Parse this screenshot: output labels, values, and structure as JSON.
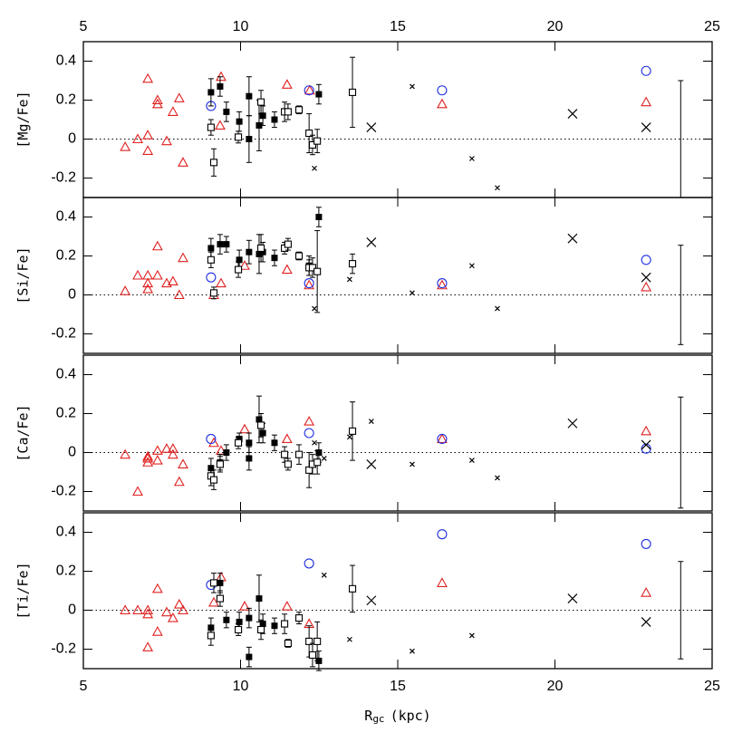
{
  "chart_data": [
    {
      "type": "scatter",
      "ylabel": "[Mg/Fe]",
      "xlim": [
        5,
        25
      ],
      "ylim": [
        -0.3,
        0.5
      ],
      "xticks": [
        5,
        10,
        15,
        20,
        25
      ],
      "yticks": [
        -0.2,
        0,
        0.2,
        0.4
      ],
      "hline": 0,
      "error_bar": {
        "x": 24,
        "y": 0,
        "err": 0.3
      },
      "series": [
        {
          "marker": "triangle",
          "color": "#e02020",
          "x": [
            6.33,
            6.73,
            7.05,
            7.05,
            7.05,
            7.36,
            7.36,
            7.65,
            7.85,
            8.05,
            8.17,
            9.38,
            9.35,
            11.48,
            12.2,
            16.41,
            22.9
          ],
          "y": [
            -0.04,
            0.0,
            0.31,
            0.02,
            -0.06,
            0.2,
            0.18,
            -0.01,
            0.14,
            0.21,
            -0.12,
            0.32,
            0.07,
            0.28,
            0.25,
            0.18,
            0.19
          ]
        },
        {
          "marker": "circle",
          "color": "#2030e0",
          "x": [
            9.06,
            12.18,
            16.41,
            22.9
          ],
          "y": [
            0.17,
            0.25,
            0.25,
            0.35
          ]
        },
        {
          "marker": "filled-square",
          "color": "#000000",
          "x": [
            9.06,
            9.35,
            9.55,
            9.96,
            10.27,
            10.27,
            10.59,
            10.71,
            11.08,
            12.49
          ],
          "y": [
            0.24,
            0.27,
            0.14,
            0.09,
            0.22,
            0.0,
            0.07,
            0.12,
            0.1,
            0.23
          ],
          "errors": [
            0.07,
            0.05,
            0.05,
            0.05,
            0.1,
            0.12,
            0.13,
            0.05,
            0.04,
            0.05
          ]
        },
        {
          "marker": "open-square",
          "color": "#000000",
          "x": [
            9.06,
            9.15,
            9.93,
            10.65,
            11.4,
            11.51,
            11.86,
            12.18,
            12.29,
            12.44,
            13.56
          ],
          "y": [
            0.06,
            -0.12,
            0.01,
            0.19,
            0.14,
            0.14,
            0.15,
            0.03,
            -0.03,
            -0.01,
            0.24
          ],
          "errors": [
            0.04,
            0.07,
            0.03,
            0.06,
            0.05,
            0.04,
            0.02,
            0.1,
            0.05,
            0.06,
            0.18
          ]
        },
        {
          "marker": "big-cross",
          "color": "#000000",
          "x": [
            14.16,
            20.56,
            22.9
          ],
          "y": [
            0.06,
            0.13,
            0.06
          ]
        },
        {
          "marker": "small-cross",
          "color": "#000000",
          "x": [
            12.35,
            15.46,
            17.36,
            18.17
          ],
          "y": [
            -0.15,
            0.27,
            -0.1,
            -0.25
          ]
        }
      ]
    },
    {
      "type": "scatter",
      "ylabel": "[Si/Fe]",
      "xlim": [
        5,
        25
      ],
      "ylim": [
        -0.3,
        0.5
      ],
      "xticks": [
        5,
        10,
        15,
        20,
        25
      ],
      "yticks": [
        -0.2,
        0,
        0.2,
        0.4
      ],
      "hline": 0,
      "error_bar": {
        "x": 24,
        "y": 0,
        "err": 0.255
      },
      "series": [
        {
          "marker": "triangle",
          "color": "#e02020",
          "x": [
            6.33,
            6.73,
            7.05,
            7.05,
            7.05,
            7.36,
            7.36,
            7.65,
            7.85,
            8.05,
            8.17,
            9.15,
            9.38,
            10.13,
            11.48,
            12.18,
            16.41,
            22.9
          ],
          "y": [
            0.02,
            0.1,
            0.1,
            0.06,
            0.03,
            0.25,
            0.1,
            0.06,
            0.07,
            0.0,
            0.19,
            0.0,
            0.06,
            0.15,
            0.13,
            0.05,
            0.05,
            0.04
          ]
        },
        {
          "marker": "circle",
          "color": "#2030e0",
          "x": [
            9.06,
            12.18,
            16.41,
            22.9
          ],
          "y": [
            0.09,
            0.06,
            0.06,
            0.18
          ]
        },
        {
          "marker": "filled-square",
          "color": "#000000",
          "x": [
            9.06,
            9.35,
            9.55,
            9.96,
            10.27,
            10.59,
            10.71,
            11.08,
            12.18,
            12.49
          ],
          "y": [
            0.24,
            0.26,
            0.26,
            0.18,
            0.22,
            0.21,
            0.22,
            0.19,
            0.15,
            0.4
          ],
          "errors": [
            0.05,
            0.05,
            0.04,
            0.05,
            0.06,
            0.1,
            0.05,
            0.04,
            0.05,
            0.05
          ]
        },
        {
          "marker": "open-square",
          "color": "#000000",
          "x": [
            9.06,
            9.15,
            9.93,
            10.65,
            11.4,
            11.51,
            11.86,
            12.18,
            12.29,
            12.44,
            13.56
          ],
          "y": [
            0.18,
            0.01,
            0.13,
            0.24,
            0.24,
            0.26,
            0.2,
            0.14,
            0.14,
            0.12,
            0.16
          ],
          "errors": [
            0.04,
            0.03,
            0.04,
            0.07,
            0.03,
            0.03,
            0.02,
            0.04,
            0.05,
            0.21,
            0.05
          ]
        },
        {
          "marker": "big-cross",
          "color": "#000000",
          "x": [
            14.16,
            20.56,
            22.9
          ],
          "y": [
            0.27,
            0.29,
            0.09
          ]
        },
        {
          "marker": "small-cross",
          "color": "#000000",
          "x": [
            12.35,
            13.47,
            15.46,
            17.36,
            18.17
          ],
          "y": [
            -0.07,
            0.08,
            0.01,
            0.15,
            -0.07
          ]
        }
      ]
    },
    {
      "type": "scatter",
      "ylabel": "[Ca/Fe]",
      "xlim": [
        5,
        25
      ],
      "ylim": [
        -0.3,
        0.5
      ],
      "xticks": [
        5,
        10,
        15,
        20,
        25
      ],
      "yticks": [
        -0.2,
        0,
        0.2,
        0.4
      ],
      "hline": 0,
      "error_bar": {
        "x": 24,
        "y": 0,
        "err": 0.285
      },
      "series": [
        {
          "marker": "triangle",
          "color": "#e02020",
          "x": [
            6.33,
            6.73,
            7.05,
            7.05,
            7.05,
            7.36,
            7.36,
            7.65,
            7.85,
            7.85,
            8.05,
            8.17,
            9.15,
            9.38,
            10.13,
            11.48,
            12.18,
            16.41,
            22.9
          ],
          "y": [
            -0.01,
            -0.2,
            -0.03,
            -0.05,
            -0.02,
            0.01,
            -0.04,
            0.02,
            -0.01,
            0.02,
            -0.15,
            -0.06,
            0.05,
            0.01,
            0.12,
            0.07,
            0.16,
            0.07,
            0.11
          ]
        },
        {
          "marker": "circle",
          "color": "#2030e0",
          "x": [
            9.06,
            12.18,
            16.41,
            22.9
          ],
          "y": [
            0.07,
            0.1,
            0.07,
            0.02
          ]
        },
        {
          "marker": "filled-square",
          "color": "#000000",
          "x": [
            9.06,
            9.35,
            9.55,
            9.96,
            10.27,
            10.27,
            10.59,
            10.71,
            11.08,
            12.49
          ],
          "y": [
            -0.08,
            -0.05,
            0.0,
            0.07,
            0.05,
            -0.03,
            0.17,
            0.1,
            0.05,
            0.0
          ],
          "errors": [
            0.05,
            0.04,
            0.04,
            0.03,
            0.05,
            0.06,
            0.12,
            0.05,
            0.04,
            0.05
          ]
        },
        {
          "marker": "open-square",
          "color": "#000000",
          "x": [
            9.06,
            9.15,
            9.35,
            9.93,
            10.65,
            11.4,
            11.51,
            11.86,
            12.18,
            12.29,
            12.44,
            13.56
          ],
          "y": [
            -0.12,
            -0.14,
            -0.06,
            0.05,
            0.14,
            -0.01,
            -0.06,
            -0.01,
            -0.09,
            -0.06,
            -0.05,
            0.11
          ],
          "errors": [
            0.05,
            0.05,
            0.04,
            0.03,
            0.06,
            0.04,
            0.03,
            0.05,
            0.09,
            0.05,
            0.06,
            0.15
          ]
        },
        {
          "marker": "big-cross",
          "color": "#000000",
          "x": [
            14.16,
            20.56,
            22.9
          ],
          "y": [
            -0.06,
            0.15,
            0.04
          ]
        },
        {
          "marker": "small-cross",
          "color": "#000000",
          "x": [
            12.35,
            12.66,
            13.47,
            14.16,
            15.46,
            17.36,
            18.17
          ],
          "y": [
            0.05,
            -0.03,
            0.08,
            0.16,
            -0.06,
            -0.04,
            -0.13
          ]
        }
      ]
    },
    {
      "type": "scatter",
      "ylabel": "[Ti/Fe]",
      "xlabel": {
        "main": "R",
        "sub": "gc",
        "unit": "(kpc)"
      },
      "xlim": [
        5,
        25
      ],
      "ylim": [
        -0.3,
        0.5
      ],
      "xticks": [
        5,
        10,
        15,
        20,
        25
      ],
      "yticks": [
        -0.2,
        0,
        0.2,
        0.4
      ],
      "hline": 0,
      "error_bar": {
        "x": 24,
        "y": 0,
        "err": 0.25
      },
      "series": [
        {
          "marker": "triangle",
          "color": "#e02020",
          "x": [
            6.33,
            6.73,
            7.05,
            7.05,
            7.05,
            7.36,
            7.36,
            7.65,
            7.85,
            8.05,
            8.17,
            9.15,
            9.38,
            10.13,
            11.48,
            12.18,
            16.41,
            22.9
          ],
          "y": [
            0.0,
            0.0,
            -0.19,
            -0.02,
            0.0,
            0.11,
            -0.11,
            -0.01,
            -0.04,
            0.03,
            0.0,
            0.04,
            0.17,
            0.02,
            0.02,
            -0.07,
            0.14,
            0.09
          ]
        },
        {
          "marker": "circle",
          "color": "#2030e0",
          "x": [
            9.06,
            12.18,
            16.41,
            22.9
          ],
          "y": [
            0.13,
            0.24,
            0.39,
            0.34
          ]
        },
        {
          "marker": "filled-square",
          "color": "#000000",
          "x": [
            9.06,
            9.35,
            9.55,
            9.96,
            10.27,
            10.27,
            10.59,
            10.71,
            11.08,
            12.49
          ],
          "y": [
            -0.09,
            0.14,
            -0.05,
            -0.06,
            -0.24,
            -0.04,
            0.06,
            -0.07,
            -0.08,
            -0.26
          ],
          "errors": [
            0.05,
            0.05,
            0.04,
            0.05,
            0.05,
            0.05,
            0.12,
            0.05,
            0.04,
            0.05
          ]
        },
        {
          "marker": "open-square",
          "color": "#000000",
          "x": [
            9.06,
            9.15,
            9.35,
            9.93,
            10.65,
            11.4,
            11.51,
            11.86,
            12.18,
            12.29,
            12.44,
            13.56
          ],
          "y": [
            -0.13,
            0.14,
            0.06,
            -0.1,
            -0.1,
            -0.07,
            -0.17,
            -0.04,
            -0.16,
            -0.23,
            -0.16,
            0.11
          ],
          "errors": [
            0.05,
            0.05,
            0.04,
            0.03,
            0.05,
            0.05,
            0.02,
            0.03,
            0.08,
            0.06,
            0.1,
            0.12
          ]
        },
        {
          "marker": "big-cross",
          "color": "#000000",
          "x": [
            14.16,
            20.56,
            22.9
          ],
          "y": [
            0.05,
            0.06,
            -0.06
          ]
        },
        {
          "marker": "small-cross",
          "color": "#000000",
          "x": [
            12.66,
            13.47,
            15.46,
            17.36
          ],
          "y": [
            0.18,
            -0.15,
            -0.21,
            -0.13
          ]
        }
      ]
    }
  ]
}
